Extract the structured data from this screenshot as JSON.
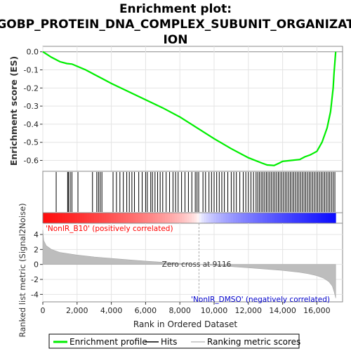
{
  "colors": {
    "es_line": "#00ee00",
    "hits": "#000000",
    "metric_fill": "#bdbdbd",
    "pos_label": "#ff0000",
    "neg_label": "#0000cc",
    "zero_line": "#aaaaaa",
    "heat_pos": "#ff0000",
    "heat_neg": "#0000ff"
  },
  "chart_data": [
    {
      "type": "line",
      "title_lines": [
        "Enrichment plot:",
        "GOBP_PROTEIN_DNA_COMPLEX_SUBUNIT_ORGANIZAT",
        "ION"
      ],
      "ylabel": "Enrichment score (ES)",
      "ylim": [
        -0.66,
        0.03
      ],
      "xlim": [
        0,
        17500
      ],
      "yticks": [
        0.0,
        -0.1,
        -0.2,
        -0.3,
        -0.4,
        -0.5,
        -0.6
      ],
      "ytick_labels": [
        "0.0",
        "-0.1",
        "-0.2",
        "-0.3",
        "-0.4",
        "-0.5",
        "-0.6"
      ],
      "grid": true,
      "series": [
        {
          "name": "Enrichment profile",
          "x": [
            0,
            500,
            1000,
            1400,
            1700,
            2000,
            2500,
            3000,
            3500,
            4000,
            5000,
            6000,
            7000,
            8000,
            9000,
            10000,
            11000,
            12000,
            12800,
            13100,
            13500,
            13800,
            14000,
            14500,
            15000,
            15300,
            15600,
            16000,
            16300,
            16600,
            16800,
            16950,
            17000,
            17050,
            17100
          ],
          "y": [
            0.0,
            -0.03,
            -0.055,
            -0.065,
            -0.068,
            -0.08,
            -0.1,
            -0.125,
            -0.15,
            -0.175,
            -0.22,
            -0.265,
            -0.31,
            -0.36,
            -0.42,
            -0.48,
            -0.535,
            -0.585,
            -0.615,
            -0.625,
            -0.628,
            -0.615,
            -0.605,
            -0.6,
            -0.595,
            -0.58,
            -0.57,
            -0.55,
            -0.5,
            -0.42,
            -0.33,
            -0.2,
            -0.12,
            -0.06,
            0.0
          ]
        }
      ]
    },
    {
      "type": "hits",
      "series": [
        {
          "name": "Hits",
          "x": [
            780,
            1450,
            1500,
            1600,
            1700,
            2050,
            2900,
            3150,
            3250,
            3350,
            3450,
            4100,
            4300,
            4500,
            4700,
            4900,
            5050,
            5200,
            5350,
            5600,
            5800,
            6000,
            6100,
            6300,
            6400,
            6550,
            6700,
            6850,
            7000,
            7200,
            7400,
            7600,
            7750,
            7900,
            8100,
            8300,
            8500,
            8700,
            8900,
            9000,
            9100,
            9350,
            9500,
            9700,
            9850,
            10000,
            10150,
            10300,
            10450,
            10600,
            10800,
            11000,
            11150,
            11300,
            11500,
            11700,
            11850,
            12000,
            12150,
            12300,
            12450,
            12550,
            12650,
            12750,
            12850,
            12950,
            13050,
            13150,
            13250,
            13350,
            13450,
            13550,
            13650,
            13750,
            13850,
            13950,
            14050,
            14150,
            14250,
            14350,
            14450,
            14550,
            14650,
            14750,
            14850,
            14950,
            15050,
            15150,
            15250,
            15350,
            15450,
            15550,
            15650,
            15750,
            15850,
            15950,
            16050,
            16150,
            16250,
            16350,
            16450,
            16550,
            16650,
            16750,
            16850,
            16950,
            17050
          ]
        }
      ]
    },
    {
      "type": "area",
      "ylabel": "Ranked list metric (Signal2Noise)",
      "xlabel": "Rank in Ordered Dataset",
      "xlim": [
        0,
        17500
      ],
      "ylim": [
        -5,
        5.5
      ],
      "xticks": [
        0,
        2000,
        4000,
        6000,
        8000,
        10000,
        12000,
        14000,
        16000
      ],
      "xtick_labels": [
        "0",
        "2,000",
        "4,000",
        "6,000",
        "8,000",
        "10,000",
        "12,000",
        "14,000",
        "16,000"
      ],
      "yticks": [
        4,
        2,
        0,
        -2,
        -4
      ],
      "ytick_labels": [
        "4",
        "2",
        "0",
        "-2",
        "-4"
      ],
      "zero_cross": 9116,
      "zero_cross_label": "Zero cross at 9116",
      "pos_label": "'NonIR_B10' (positively correlated)",
      "neg_label": "'NonIR_DMSO' (negatively correlated)",
      "series": [
        {
          "name": "Ranking metric scores",
          "x": [
            0,
            50,
            200,
            500,
            1000,
            2000,
            3000,
            4000,
            5000,
            6000,
            7000,
            8000,
            9116,
            10000,
            11000,
            12000,
            13000,
            14000,
            15000,
            15500,
            16000,
            16400,
            16700,
            16900,
            17000,
            17100
          ],
          "y": [
            4.6,
            3.2,
            2.5,
            2.0,
            1.6,
            1.25,
            1.0,
            0.8,
            0.62,
            0.45,
            0.3,
            0.15,
            0.0,
            -0.13,
            -0.28,
            -0.45,
            -0.62,
            -0.8,
            -1.05,
            -1.25,
            -1.5,
            -1.85,
            -2.3,
            -2.9,
            -3.6,
            -4.5
          ]
        }
      ]
    }
  ],
  "legend": {
    "items": [
      {
        "label": "Enrichment profile",
        "color": "#00ee00",
        "style": "line"
      },
      {
        "label": "Hits",
        "color": "#000000",
        "style": "line"
      },
      {
        "label": "Ranking metric scores",
        "color": "#bdbdbd",
        "style": "line"
      }
    ]
  }
}
